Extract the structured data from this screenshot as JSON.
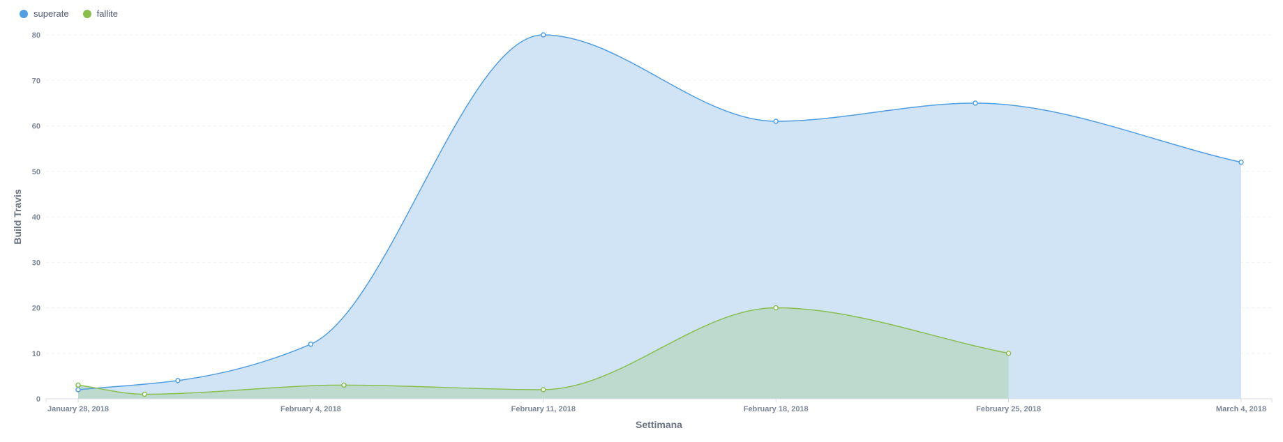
{
  "legend": {
    "superate": "superate",
    "fallite": "fallite"
  },
  "colors": {
    "superate_line": "#509ee3",
    "superate_fill": "#cfe3f6",
    "fallite_line": "#88bf4d",
    "fallite_fill": "#bcd9cc",
    "grid": "#eef0f3"
  },
  "chart_data": {
    "type": "area",
    "xlabel": "Settimana",
    "ylabel": "Build Travis",
    "x_ticks": [
      "January 28, 2018",
      "February 4, 2018",
      "February 11, 2018",
      "February 18, 2018",
      "February 25, 2018",
      "March 4, 2018"
    ],
    "y_ticks": [
      0,
      10,
      20,
      30,
      40,
      50,
      60,
      70,
      80
    ],
    "ylim": [
      0,
      80
    ],
    "xlim": [
      "2018-01-28",
      "2018-03-04"
    ],
    "grid": true,
    "legend_position": "top-left",
    "series": [
      {
        "name": "superate",
        "points": [
          {
            "x": "2018-01-28",
            "y": 2
          },
          {
            "x": "2018-01-31",
            "y": 4
          },
          {
            "x": "2018-02-04",
            "y": 12
          },
          {
            "x": "2018-02-11",
            "y": 80
          },
          {
            "x": "2018-02-18",
            "y": 61
          },
          {
            "x": "2018-02-24",
            "y": 65
          },
          {
            "x": "2018-03-04",
            "y": 52
          }
        ]
      },
      {
        "name": "fallite",
        "points": [
          {
            "x": "2018-01-28",
            "y": 3
          },
          {
            "x": "2018-01-30",
            "y": 1
          },
          {
            "x": "2018-02-05",
            "y": 3
          },
          {
            "x": "2018-02-11",
            "y": 2
          },
          {
            "x": "2018-02-18",
            "y": 20
          },
          {
            "x": "2018-02-25",
            "y": 10
          }
        ]
      }
    ]
  }
}
